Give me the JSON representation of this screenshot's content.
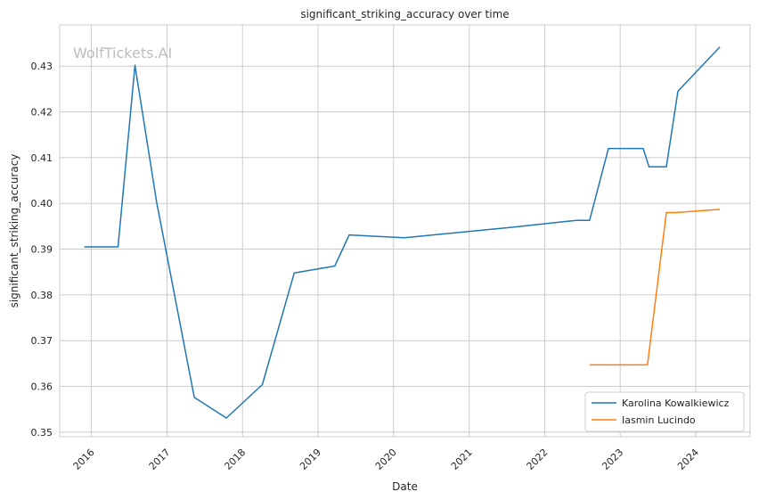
{
  "chart_data": {
    "type": "line",
    "title": "significant_striking_accuracy over time",
    "xlabel": "Date",
    "ylabel": "significant_striking_accuracy",
    "watermark": "WolfTickets.AI",
    "grid": true,
    "legend_position": "bottom-right",
    "xlim": [
      "2015-08-01",
      "2024-09-20"
    ],
    "ylim": [
      0.349,
      0.439
    ],
    "x_ticks": [
      "2016-01-01",
      "2017-01-01",
      "2018-01-01",
      "2019-01-01",
      "2020-01-01",
      "2021-01-01",
      "2022-01-01",
      "2023-01-01",
      "2024-01-01"
    ],
    "x_tick_labels": [
      "2016",
      "2017",
      "2018",
      "2019",
      "2020",
      "2021",
      "2022",
      "2023",
      "2024"
    ],
    "y_ticks": [
      0.35,
      0.36,
      0.37,
      0.38,
      0.39,
      0.4,
      0.41,
      0.42,
      0.43
    ],
    "y_tick_labels": [
      "0.35",
      "0.36",
      "0.37",
      "0.38",
      "0.39",
      "0.40",
      "0.41",
      "0.42",
      "0.43"
    ],
    "series": [
      {
        "name": "Karolina Kowalkiewicz",
        "color": "#1f77b4",
        "points": [
          {
            "x": "2015-11-28",
            "y": 0.3905
          },
          {
            "x": "2016-05-09",
            "y": 0.3905
          },
          {
            "x": "2016-07-30",
            "y": 0.4302
          },
          {
            "x": "2016-11-12",
            "y": 0.4002
          },
          {
            "x": "2017-05-13",
            "y": 0.3576
          },
          {
            "x": "2017-10-15",
            "y": 0.3531
          },
          {
            "x": "2018-04-07",
            "y": 0.3604
          },
          {
            "x": "2018-09-08",
            "y": 0.3848
          },
          {
            "x": "2019-03-23",
            "y": 0.3863
          },
          {
            "x": "2019-06-01",
            "y": 0.3931
          },
          {
            "x": "2020-02-22",
            "y": 0.3925
          },
          {
            "x": "2021-08-01",
            "y": 0.3948
          },
          {
            "x": "2022-06-04",
            "y": 0.3963
          },
          {
            "x": "2022-08-06",
            "y": 0.3963
          },
          {
            "x": "2022-11-05",
            "y": 0.412
          },
          {
            "x": "2023-04-22",
            "y": 0.412
          },
          {
            "x": "2023-05-20",
            "y": 0.408
          },
          {
            "x": "2023-08-12",
            "y": 0.408
          },
          {
            "x": "2023-10-07",
            "y": 0.4245
          },
          {
            "x": "2024-04-27",
            "y": 0.4342
          }
        ]
      },
      {
        "name": "Iasmin Lucindo",
        "color": "#ff7f0e",
        "points": [
          {
            "x": "2022-08-06",
            "y": 0.3647
          },
          {
            "x": "2023-05-13",
            "y": 0.3647
          },
          {
            "x": "2023-08-12",
            "y": 0.398
          },
          {
            "x": "2023-09-23",
            "y": 0.398
          },
          {
            "x": "2024-04-27",
            "y": 0.3987
          }
        ]
      }
    ]
  }
}
